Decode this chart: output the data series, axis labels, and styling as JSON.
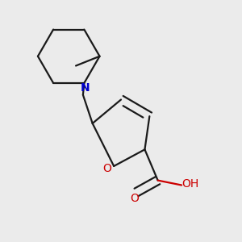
{
  "background_color": "#ebebeb",
  "bond_color": "#1a1a1a",
  "N_color": "#0000cc",
  "O_color": "#cc0000",
  "line_width": 1.6,
  "dbo": 0.018,
  "figsize": [
    3.0,
    3.0
  ],
  "dpi": 100,
  "xlim": [
    0.0,
    1.0
  ],
  "ylim": [
    0.0,
    1.0
  ]
}
